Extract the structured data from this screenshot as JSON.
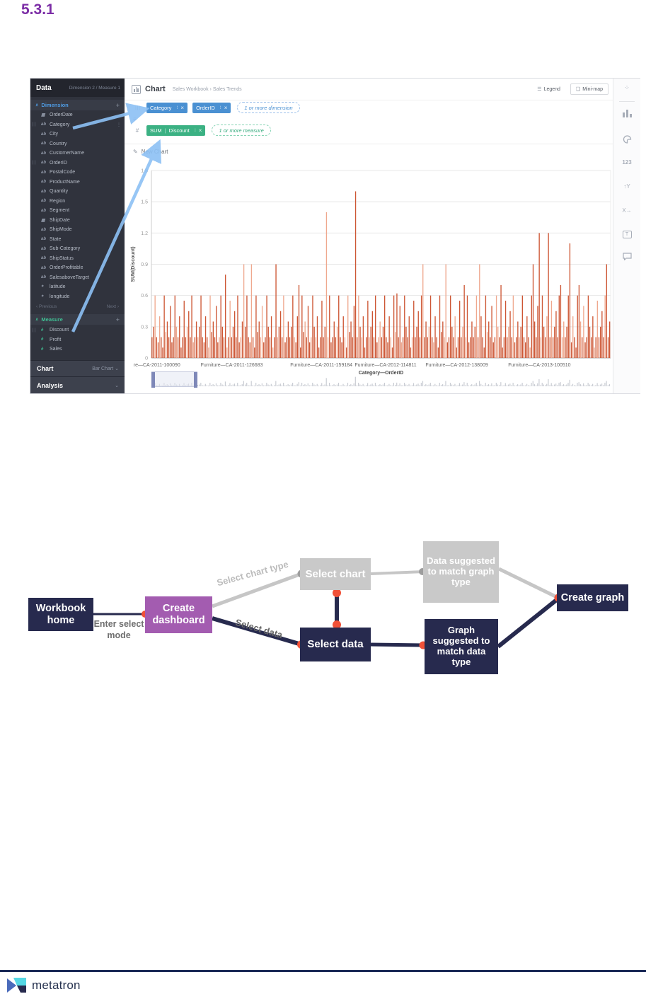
{
  "page": {
    "section_number": "5.3.1"
  },
  "screenshot": {
    "sidebar": {
      "title": "Data",
      "summary": "Dimension 2 / Measure 1",
      "dimension_section": {
        "label": "Dimension",
        "add_label": "+"
      },
      "dimension_items": [
        {
          "name": "OrderDate",
          "icon": "calendar",
          "in_use": false
        },
        {
          "name": "Category",
          "icon": "text",
          "in_use": true
        },
        {
          "name": "City",
          "icon": "text",
          "in_use": false
        },
        {
          "name": "Country",
          "icon": "text",
          "in_use": false
        },
        {
          "name": "CustomerName",
          "icon": "text",
          "in_use": false
        },
        {
          "name": "OrderID",
          "icon": "text",
          "in_use": true
        },
        {
          "name": "PostalCode",
          "icon": "text",
          "in_use": false
        },
        {
          "name": "ProductName",
          "icon": "text",
          "in_use": false
        },
        {
          "name": "Quantity",
          "icon": "text",
          "in_use": false
        },
        {
          "name": "Region",
          "icon": "text",
          "in_use": false
        },
        {
          "name": "Segment",
          "icon": "text",
          "in_use": false
        },
        {
          "name": "ShipDate",
          "icon": "calendar",
          "in_use": false
        },
        {
          "name": "ShipMode",
          "icon": "text",
          "in_use": false
        },
        {
          "name": "State",
          "icon": "text",
          "in_use": false
        },
        {
          "name": "Sub-Category",
          "icon": "text",
          "in_use": false
        },
        {
          "name": "ShipStatus",
          "icon": "text",
          "in_use": false
        },
        {
          "name": "OrderProfitable",
          "icon": "text",
          "in_use": false
        },
        {
          "name": "SalesaboveTarget",
          "icon": "text",
          "in_use": false
        },
        {
          "name": "latitude",
          "icon": "location",
          "in_use": false
        },
        {
          "name": "longitude",
          "icon": "location",
          "in_use": false
        }
      ],
      "pagination": {
        "prev": "Previous",
        "next": "Next"
      },
      "measure_section": {
        "label": "Measure",
        "add_label": "+"
      },
      "measure_items": [
        {
          "name": "Discount",
          "icon": "measure",
          "in_use": true
        },
        {
          "name": "Profit",
          "icon": "measure",
          "in_use": false
        },
        {
          "name": "Sales",
          "icon": "measure",
          "in_use": false
        }
      ],
      "chart_section": {
        "label": "Chart",
        "value": "Bar Chart"
      },
      "analysis_section": {
        "label": "Analysis"
      }
    },
    "header": {
      "title": "Chart",
      "breadcrumb_workbook": "Sales Workbook",
      "breadcrumb_separator": "›",
      "breadcrumb_page": "Sales Trends",
      "legend_button": "Legend",
      "minimap_button": "Mini-map"
    },
    "shelves": {
      "dimension_chips": [
        "Category",
        "OrderID"
      ],
      "dimension_placeholder": "1 or more dimension",
      "measure_chip_prefix": "SUM",
      "measure_chip_label": "Discount",
      "measure_placeholder": "1 or more measure"
    },
    "new_chart_label": "New Chart",
    "toolbar": {
      "number_icon_text": "123",
      "sort_icon_text": "↑Y",
      "xaxis_icon_text": "X→",
      "text_icon_text": "T"
    }
  },
  "chart_data": {
    "type": "bar",
    "title": "",
    "ylabel": "SUM(Discount)",
    "xlabel": "Category—OrderID",
    "ylim": [
      0,
      1.8
    ],
    "yticks": [
      0,
      0.3,
      0.6,
      0.9,
      1.2,
      1.5,
      1.8
    ],
    "grid": true,
    "legend": false,
    "x_tick_labels": [
      "re—CA-2011-100090",
      "Furniture—CA-2011-126683",
      "Furniture—CA-2011-159184",
      "Furniture—CA-2012-114811",
      "Furniture—CA-2012-138009",
      "Furniture—CA-2013-100510"
    ],
    "x_tick_positions": [
      0.012,
      0.175,
      0.37,
      0.51,
      0.665,
      0.845
    ],
    "bar_count": 300,
    "base_pattern": [
      0.2,
      0.3,
      0.6,
      0.2,
      0.15,
      0.4,
      0.2,
      0.1,
      0.6,
      0.25,
      0.35,
      0.2,
      0.5,
      0.15,
      0.2,
      0.6,
      0.3,
      0.2,
      0.4,
      0.1,
      0.2,
      0.55,
      0.2,
      0.3,
      0.45,
      0.2,
      0.6,
      0.15,
      0.2,
      0.35
    ],
    "spikes": {
      "48": 0.8,
      "60": 0.9,
      "65": 0.9,
      "81": 0.9,
      "96": 0.7,
      "114": 1.4,
      "133": 1.6,
      "160": 0.62,
      "177": 0.9,
      "192": 0.9,
      "204": 0.7,
      "214": 0.9,
      "228": 0.7,
      "249": 0.9,
      "253": 1.2,
      "259": 1.2,
      "267": 0.7,
      "273": 1.1,
      "279": 0.7,
      "297": 0.9
    },
    "bar_color": "#cd5634",
    "bar_color_light": "#efa88e",
    "minimap_bar_color": "#c9ccd3"
  },
  "diagram": {
    "nodes": {
      "workbook_home": "Workbook home",
      "create_dashboard": "Create dashboard",
      "select_chart": "Select chart",
      "select_data": "Select data",
      "data_suggested": "Data suggested to match graph type",
      "graph_suggested": "Graph suggested to match data type",
      "create_graph": "Create graph"
    },
    "edge_labels": {
      "enter_select_mode": "Enter select mode",
      "select_chart_type": "Select chart type",
      "select_data": "Select data"
    },
    "colors": {
      "navy": "#272a4e",
      "purple": "#a35cb0",
      "gray": "#c9c9c9",
      "dot_red": "#f05138",
      "dot_gray": "#9d9d9d"
    }
  },
  "footer": {
    "brand": "metatron"
  }
}
